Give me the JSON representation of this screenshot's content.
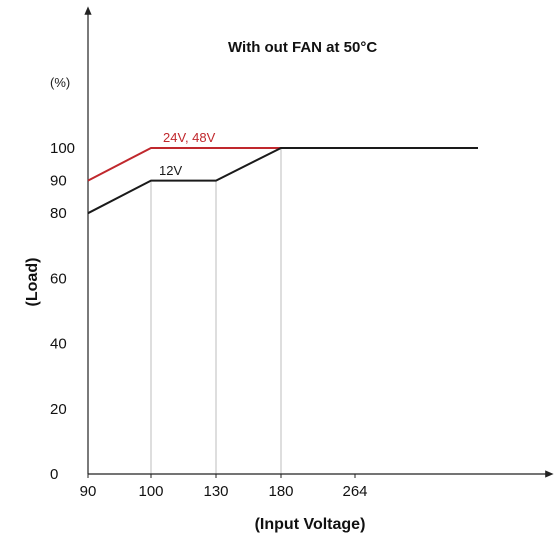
{
  "chart_data": {
    "type": "line",
    "title": "With out  FAN at 50°C",
    "unit_label": "(%)",
    "xlabel": "(Input Voltage)",
    "ylabel": "(Load)",
    "x_tick_labels": [
      "90",
      "100",
      "130",
      "180",
      "264"
    ],
    "y_tick_labels": [
      "0",
      "20",
      "40",
      "60",
      "80",
      "90",
      "100"
    ],
    "y_ticks": [
      0,
      20,
      40,
      60,
      80,
      90,
      100
    ],
    "ylim": [
      0,
      125
    ],
    "grid": false,
    "legend": "inline labels on lines",
    "vertical_guides": [
      "100",
      "130",
      "180"
    ],
    "series": [
      {
        "name": "24V, 48V",
        "color": "#c0282d",
        "points": [
          {
            "x": "90",
            "y": 90
          },
          {
            "x": "100",
            "y": 100
          },
          {
            "x": "180",
            "y": 100
          },
          {
            "x": "264",
            "y": 100
          }
        ]
      },
      {
        "name": "12V",
        "color": "#1a1a1a",
        "points": [
          {
            "x": "90",
            "y": 80
          },
          {
            "x": "100",
            "y": 90
          },
          {
            "x": "130",
            "y": 90
          },
          {
            "x": "180",
            "y": 100
          },
          {
            "x": "264",
            "y": 100
          }
        ]
      }
    ]
  }
}
